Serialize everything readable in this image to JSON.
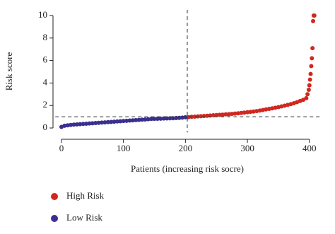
{
  "chart_data": {
    "type": "scatter",
    "xlabel": "Patients (increasing risk socre)",
    "ylabel": "Risk score",
    "xlim": [
      -10,
      420
    ],
    "ylim": [
      -0.4,
      10.5
    ],
    "xticks": [
      0,
      100,
      200,
      300,
      400
    ],
    "yticks": [
      0,
      2,
      4,
      6,
      8,
      10
    ],
    "hline": 1,
    "vline": 203,
    "series": [
      {
        "name": "High Risk",
        "color": "#d0281f",
        "x": [
          205,
          210,
          215,
          220,
          225,
          230,
          235,
          240,
          245,
          250,
          255,
          260,
          265,
          270,
          275,
          280,
          285,
          290,
          295,
          300,
          305,
          310,
          315,
          320,
          325,
          330,
          335,
          340,
          345,
          350,
          355,
          360,
          365,
          370,
          375,
          380,
          385,
          390,
          395,
          397,
          399,
          400,
          401,
          402,
          403,
          404,
          405,
          406,
          407,
          408
        ],
        "values": [
          0.97,
          0.99,
          1.01,
          1.03,
          1.05,
          1.07,
          1.09,
          1.11,
          1.13,
          1.15,
          1.17,
          1.19,
          1.21,
          1.23,
          1.25,
          1.28,
          1.31,
          1.34,
          1.37,
          1.4,
          1.43,
          1.46,
          1.5,
          1.55,
          1.6,
          1.65,
          1.7,
          1.75,
          1.8,
          1.86,
          1.92,
          1.98,
          2.05,
          2.12,
          2.2,
          2.3,
          2.4,
          2.5,
          2.65,
          3.0,
          3.4,
          3.8,
          4.3,
          4.8,
          5.5,
          6.2,
          7.1,
          9.5,
          10,
          10
        ]
      },
      {
        "name": "Low Risk",
        "color": "#3a2f8f",
        "x": [
          0,
          5,
          10,
          15,
          20,
          25,
          30,
          35,
          40,
          45,
          50,
          55,
          60,
          65,
          70,
          75,
          80,
          85,
          90,
          95,
          100,
          105,
          110,
          115,
          120,
          125,
          130,
          135,
          140,
          145,
          150,
          155,
          160,
          165,
          170,
          175,
          180,
          185,
          190,
          195,
          200
        ],
        "values": [
          0.1,
          0.2,
          0.24,
          0.27,
          0.3,
          0.32,
          0.34,
          0.36,
          0.38,
          0.4,
          0.42,
          0.44,
          0.46,
          0.48,
          0.5,
          0.52,
          0.54,
          0.56,
          0.58,
          0.6,
          0.62,
          0.64,
          0.66,
          0.68,
          0.7,
          0.72,
          0.74,
          0.76,
          0.78,
          0.8,
          0.81,
          0.82,
          0.83,
          0.84,
          0.85,
          0.86,
          0.87,
          0.88,
          0.9,
          0.92,
          0.95
        ]
      }
    ]
  }
}
